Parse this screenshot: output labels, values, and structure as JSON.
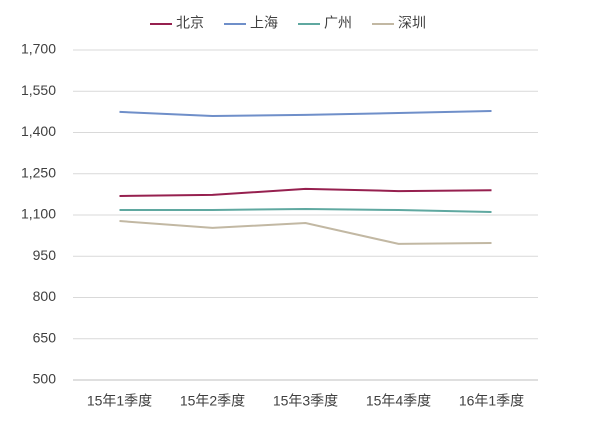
{
  "chart_data": {
    "type": "line",
    "categories": [
      "15年1季度",
      "15年2季度",
      "15年3季度",
      "15年4季度",
      "16年1季度"
    ],
    "series": [
      {
        "name": "北京",
        "color": "#96204f",
        "values": [
          1169,
          1173,
          1195,
          1187,
          1190
        ]
      },
      {
        "name": "上海",
        "color": "#6f8fc9",
        "values": [
          1475,
          1460,
          1464,
          1471,
          1478
        ]
      },
      {
        "name": "广州",
        "color": "#5fa8a0",
        "values": [
          1118,
          1118,
          1122,
          1118,
          1111
        ]
      },
      {
        "name": "深圳",
        "color": "#c2b8a3",
        "values": [
          1078,
          1053,
          1071,
          995,
          998
        ]
      }
    ],
    "ylim": [
      500,
      1700
    ],
    "yticks": [
      500,
      650,
      800,
      950,
      {
        "value": 1100,
        "label": "1,100"
      },
      {
        "value": 1250,
        "label": "1,250"
      },
      {
        "value": 1400,
        "label": "1,400"
      },
      {
        "value": 1550,
        "label": "1,550"
      },
      {
        "value": 1700,
        "label": "1,700"
      }
    ],
    "grid": true,
    "legend": "top"
  }
}
